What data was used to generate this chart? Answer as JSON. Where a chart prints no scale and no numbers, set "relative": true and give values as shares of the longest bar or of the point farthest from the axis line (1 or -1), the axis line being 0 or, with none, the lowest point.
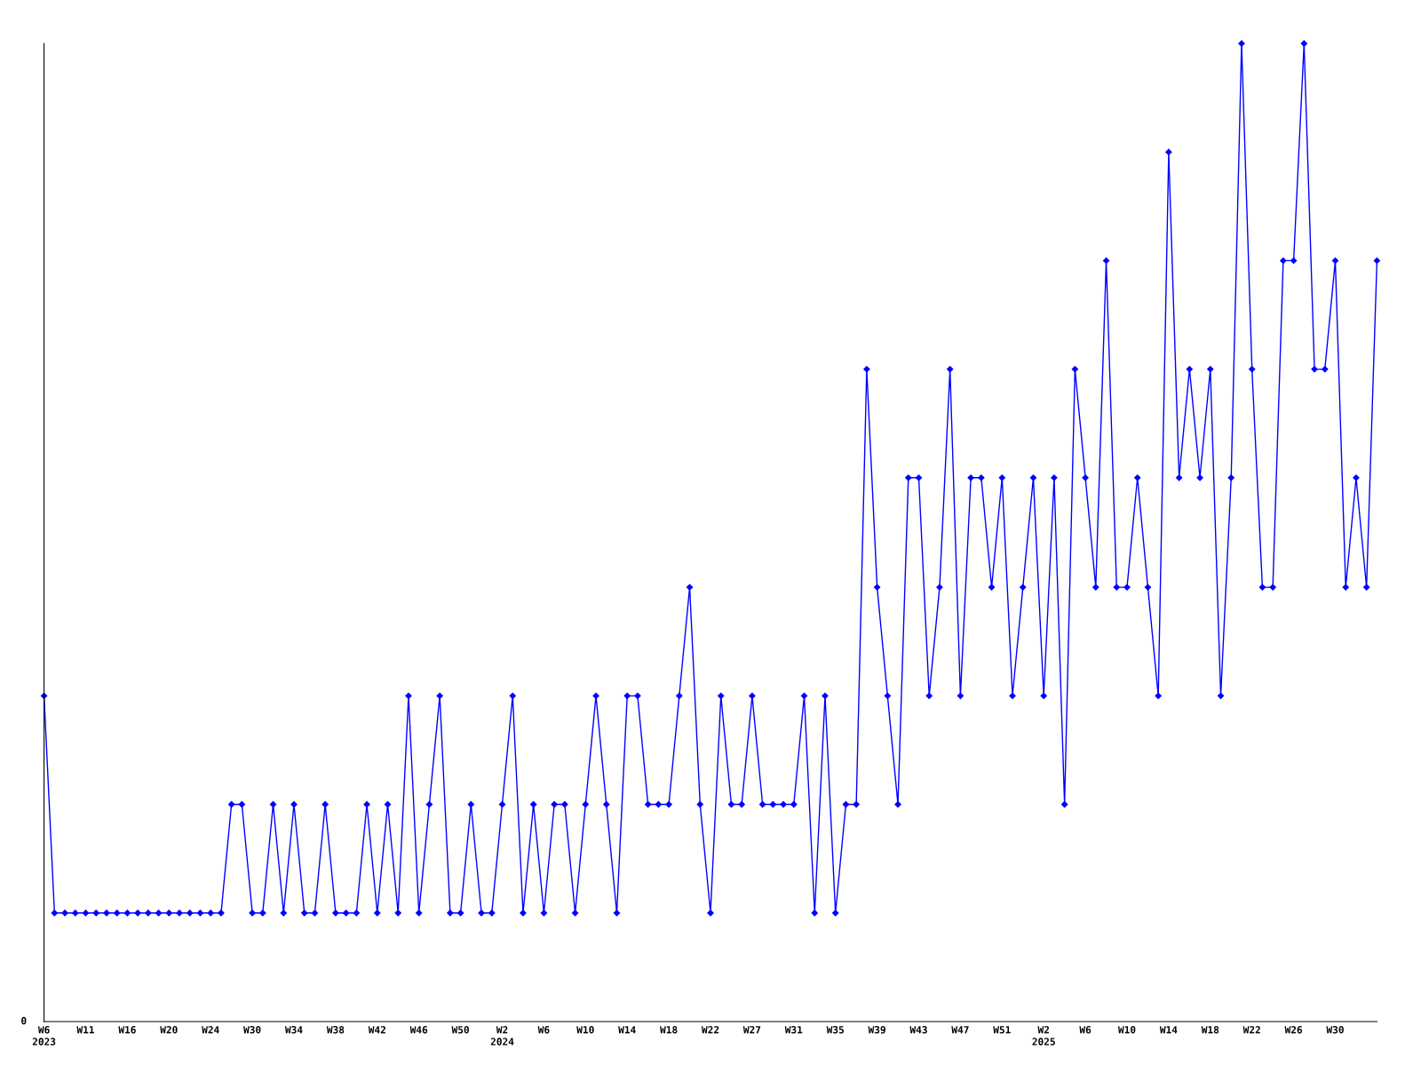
{
  "chart_data": {
    "type": "line",
    "relative": true,
    "color": "#0000ff",
    "marker": "diamond",
    "line_style": "solid",
    "grid": false,
    "legend": false,
    "annotations": [
      "0"
    ],
    "categories": [
      "W6\n2023",
      null,
      null,
      null,
      "W11",
      null,
      null,
      null,
      "W16",
      null,
      null,
      null,
      "W20",
      null,
      null,
      null,
      "W24",
      null,
      null,
      null,
      "W30",
      null,
      null,
      null,
      "W34",
      null,
      null,
      null,
      "W38",
      null,
      null,
      null,
      "W42",
      null,
      null,
      null,
      "W46",
      null,
      null,
      null,
      "W50",
      null,
      null,
      null,
      "W2\n2024",
      null,
      null,
      null,
      "W6",
      null,
      null,
      null,
      "W10",
      null,
      null,
      null,
      "W14",
      null,
      null,
      null,
      "W18",
      null,
      null,
      null,
      "W22",
      null,
      null,
      null,
      "W27",
      null,
      null,
      null,
      "W31",
      null,
      null,
      null,
      "W35",
      null,
      null,
      null,
      "W39",
      null,
      null,
      null,
      "W43",
      null,
      null,
      null,
      "W47",
      null,
      null,
      null,
      "W51",
      null,
      null,
      null,
      "W2\n2025",
      null,
      null,
      null,
      "W6",
      null,
      null,
      null,
      "W10",
      null,
      null,
      null,
      "W14",
      null,
      null,
      null,
      "W18",
      null,
      null,
      null,
      "W22",
      null,
      null,
      null,
      "W26",
      null,
      null,
      null,
      "W30",
      null,
      null,
      null,
      null
    ],
    "values": [
      0.333,
      0.111,
      0.111,
      0.111,
      0.111,
      0.111,
      0.111,
      0.111,
      0.111,
      0.111,
      0.111,
      0.111,
      0.111,
      0.111,
      0.111,
      0.111,
      0.111,
      0.111,
      0.222,
      0.222,
      0.111,
      0.111,
      0.222,
      0.111,
      0.222,
      0.111,
      0.111,
      0.222,
      0.111,
      0.111,
      0.111,
      0.222,
      0.111,
      0.222,
      0.111,
      0.333,
      0.111,
      0.222,
      0.333,
      0.111,
      0.111,
      0.222,
      0.111,
      0.111,
      0.222,
      0.333,
      0.111,
      0.222,
      0.111,
      0.222,
      0.222,
      0.111,
      0.222,
      0.333,
      0.222,
      0.111,
      0.333,
      0.333,
      0.222,
      0.222,
      0.222,
      0.333,
      0.444,
      0.222,
      0.111,
      0.333,
      0.222,
      0.222,
      0.333,
      0.222,
      0.222,
      0.222,
      0.222,
      0.333,
      0.111,
      0.333,
      0.111,
      0.222,
      0.222,
      0.667,
      0.444,
      0.333,
      0.222,
      0.556,
      0.556,
      0.333,
      0.444,
      0.667,
      0.333,
      0.556,
      0.556,
      0.444,
      0.556,
      0.333,
      0.444,
      0.556,
      0.333,
      0.556,
      0.222,
      0.667,
      0.556,
      0.444,
      0.778,
      0.444,
      0.444,
      0.556,
      0.444,
      0.333,
      0.889,
      0.556,
      0.667,
      0.556,
      0.667,
      0.333,
      0.556,
      1,
      0.667,
      0.444,
      0.444,
      0.778,
      0.778,
      1,
      0.667,
      0.667,
      0.778,
      0.444,
      0.556,
      0.444,
      0.778
    ]
  }
}
